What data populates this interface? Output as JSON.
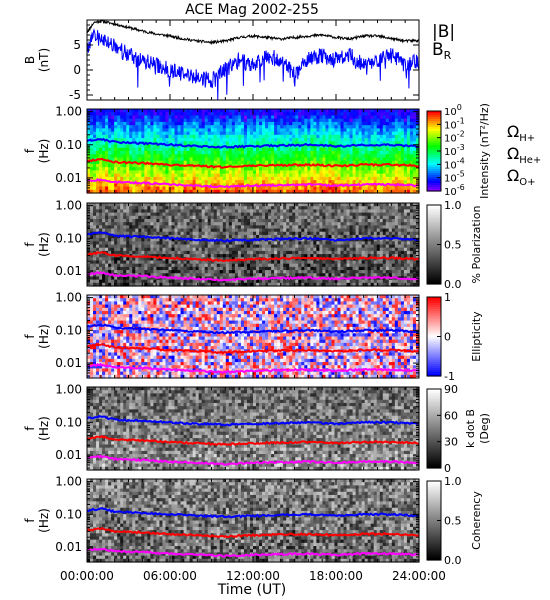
{
  "chart_data": {
    "title": "ACE Mag 2002-255",
    "xlabel": "Time (UT)",
    "x_ticks": [
      "00:00:00",
      "06:00:00",
      "12:00:00",
      "18:00:00",
      "24:00:00"
    ],
    "x_range_hours": [
      0,
      24
    ],
    "panels": [
      {
        "type": "line",
        "ylabel": [
          "B",
          "(nT)"
        ],
        "y_ticks": [
          "5",
          "0",
          "-5"
        ],
        "y_tick_values": [
          5,
          0,
          -5
        ],
        "ylim": [
          -6,
          10
        ],
        "legend": [
          {
            "name": "|B|",
            "color": "#000000"
          },
          {
            "name": "BR",
            "base": "B",
            "sub": "R",
            "color": "#0000ff"
          }
        ],
        "series": [
          {
            "name": "|B|",
            "color": "#000000",
            "x": [
              0,
              0.5,
              1,
              2,
              3,
              4,
              5,
              6,
              7,
              8,
              9,
              10,
              11,
              12,
              13,
              14,
              15,
              16,
              17,
              18,
              19,
              20,
              21,
              22,
              23,
              24
            ],
            "y": [
              7.5,
              9.5,
              9.8,
              9.2,
              8.5,
              7.8,
              7.2,
              6.8,
              6.2,
              5.8,
              5.5,
              5.8,
              6.5,
              6.8,
              6.5,
              6.2,
              6.5,
              6.8,
              7.0,
              6.5,
              6.2,
              6.8,
              6.8,
              6.3,
              5.8,
              5.9
            ]
          },
          {
            "name": "BR",
            "color": "#0000ff",
            "x": [
              0,
              0.5,
              1,
              2,
              3,
              4,
              5,
              6,
              7,
              8,
              9,
              10,
              11,
              12,
              13,
              14,
              15,
              16,
              17,
              18,
              19,
              20,
              21,
              22,
              23,
              24
            ],
            "y": [
              4,
              7,
              6,
              5,
              3,
              2,
              1,
              0,
              -1,
              -1.5,
              -2,
              0,
              2,
              1,
              3,
              2,
              -1,
              2,
              3,
              2,
              3,
              1,
              2,
              3,
              1,
              2
            ]
          }
        ]
      },
      {
        "type": "heatmap",
        "ylabel": [
          "f",
          "(Hz)"
        ],
        "y_ticks": [
          "1.00",
          "0.10",
          "0.01"
        ],
        "colorbar": {
          "scale": "rainbow",
          "ticks": [
            [
              "10",
              "0"
            ],
            [
              "10",
              "-1"
            ],
            [
              "10",
              "-2"
            ],
            [
              "10",
              "-3"
            ],
            [
              "10",
              "-4"
            ],
            [
              "10",
              "-5"
            ],
            [
              "10",
              "-6"
            ]
          ],
          "label": "Intensity (nT²/Hz)"
        },
        "legend": [
          {
            "name": "ΩH+",
            "base": "Ω",
            "sub": "H+",
            "color": "#0000ff"
          },
          {
            "name": "ΩHe+",
            "base": "Ω",
            "sub": "He+",
            "color": "#ff0000"
          },
          {
            "name": "ΩO+",
            "base": "Ω",
            "sub": "O+",
            "color": "#ff00ff"
          }
        ]
      },
      {
        "type": "heatmap",
        "ylabel": [
          "f",
          "(Hz)"
        ],
        "y_ticks": [
          "1.00",
          "0.10",
          "0.01"
        ],
        "colorbar": {
          "scale": "gray",
          "ticks": [
            "1.0",
            "0.5",
            "0.0"
          ],
          "label": "% Polarization"
        }
      },
      {
        "type": "heatmap",
        "ylabel": [
          "f",
          "(Hz)"
        ],
        "y_ticks": [
          "1.00",
          "0.10",
          "0.01"
        ],
        "colorbar": {
          "scale": "bwr",
          "ticks": [
            "1",
            "0",
            "-1"
          ],
          "label": "Ellipticity"
        }
      },
      {
        "type": "heatmap",
        "ylabel": [
          "f",
          "(Hz)"
        ],
        "y_ticks": [
          "1.00",
          "0.10",
          "0.01"
        ],
        "colorbar": {
          "scale": "gray",
          "ticks": [
            "90",
            "60",
            "30",
            "0"
          ],
          "label": [
            "k dot B",
            "(Deg)"
          ]
        }
      },
      {
        "type": "heatmap",
        "ylabel": [
          "f",
          "(Hz)"
        ],
        "y_ticks": [
          "1.00",
          "0.10",
          "0.01"
        ],
        "colorbar": {
          "scale": "gray",
          "ticks": [
            "1.0",
            "0.5",
            "0.0"
          ],
          "label": "Coherency"
        }
      }
    ],
    "gyrofrequency_lines": [
      {
        "name": "ΩH+",
        "color": "#0000ff",
        "x": [
          0,
          1,
          2,
          4,
          6,
          8,
          10,
          12,
          14,
          16,
          18,
          20,
          22,
          24
        ],
        "y_hz": [
          0.13,
          0.15,
          0.12,
          0.11,
          0.1,
          0.09,
          0.085,
          0.09,
          0.095,
          0.1,
          0.09,
          0.1,
          0.1,
          0.09
        ]
      },
      {
        "name": "ΩHe+",
        "color": "#ff0000",
        "x": [
          0,
          1,
          2,
          4,
          6,
          8,
          10,
          12,
          14,
          16,
          18,
          20,
          22,
          24
        ],
        "y_hz": [
          0.032,
          0.037,
          0.03,
          0.028,
          0.025,
          0.023,
          0.021,
          0.023,
          0.024,
          0.025,
          0.023,
          0.025,
          0.025,
          0.023
        ]
      },
      {
        "name": "ΩO+",
        "color": "#ff00ff",
        "x": [
          0,
          1,
          2,
          4,
          6,
          8,
          10,
          12,
          14,
          16,
          18,
          20,
          22,
          24
        ],
        "y_hz": [
          0.008,
          0.009,
          0.0075,
          0.007,
          0.0063,
          0.0058,
          0.0053,
          0.0058,
          0.006,
          0.0063,
          0.0058,
          0.0063,
          0.0063,
          0.0058
        ]
      }
    ]
  }
}
